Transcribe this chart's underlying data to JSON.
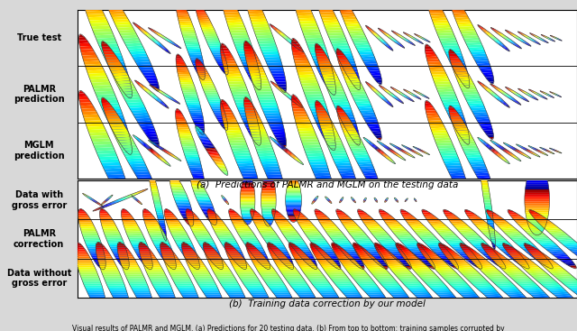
{
  "fig_width": 6.4,
  "fig_height": 3.67,
  "dpi": 100,
  "bg_color": "#d8d8d8",
  "panel_color": "#ffffff",
  "panel_a_title": "(a)  Predictions of PALMR and MGLM on the testing data",
  "panel_b_title": "(b)  Training data correction by our model",
  "footer_text": "Visual results of PALMR and MGLM. (a) Predictions for 20 testing data. (b) From top to bottom: training samples corrupted by",
  "label_fontsize": 7.0,
  "caption_fontsize": 7.5,
  "footer_fontsize": 5.5,
  "row_labels_a": [
    "True test",
    "PALMR\nprediction",
    "MGLM\nprediction"
  ],
  "row_labels_b": [
    "Data with\ngross error",
    "PALMR\ncorrection",
    "Data without\ngross error"
  ],
  "cmap": "jet_r"
}
